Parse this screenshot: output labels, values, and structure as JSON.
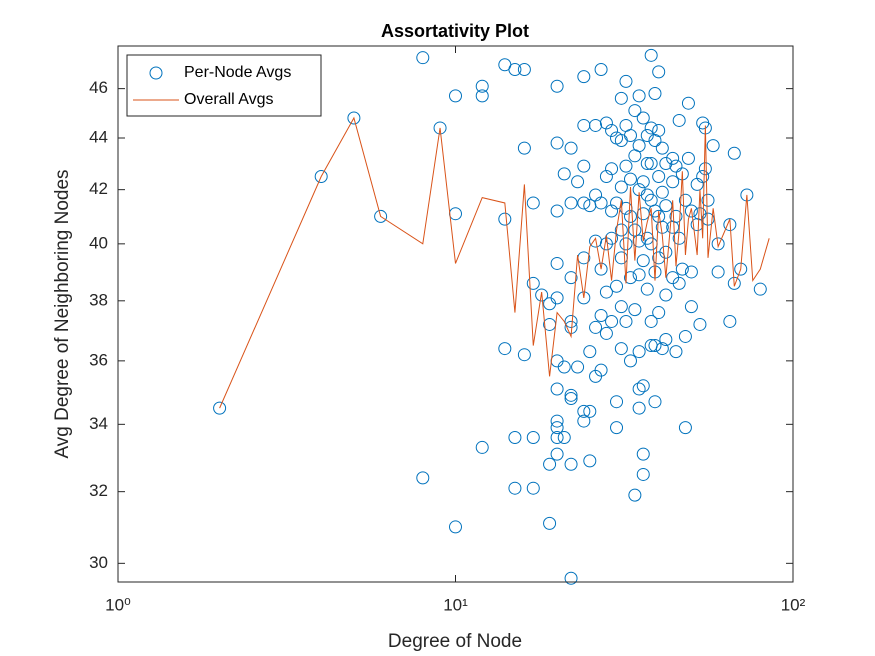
{
  "chart_data": {
    "type": "scatter",
    "title": "Assortativity Plot",
    "xlabel": "Degree of Node",
    "ylabel": "Avg Degree of Neighboring Nodes",
    "xscale": "log",
    "yscale": "log",
    "xlim": [
      1,
      100
    ],
    "ylim": [
      29.5,
      47.8
    ],
    "xticks": [
      {
        "value": 1,
        "label": "10⁰"
      },
      {
        "value": 10,
        "label": "10¹"
      },
      {
        "value": 100,
        "label": "10²"
      }
    ],
    "yticks": [
      30,
      32,
      34,
      36,
      38,
      40,
      42,
      44,
      46
    ],
    "legend": "top-left",
    "series": [
      {
        "name": "Per-Node Avgs",
        "type": "scatter",
        "color": "#0072bd",
        "x": [
          2,
          4,
          5,
          6,
          8,
          8,
          9,
          10,
          10,
          10,
          12,
          12,
          12,
          14,
          14,
          14,
          15,
          15,
          15,
          16,
          16,
          16,
          17,
          17,
          17,
          17,
          18,
          19,
          19,
          19,
          19,
          20,
          20,
          20,
          20,
          20,
          20,
          20,
          20,
          20,
          20,
          20,
          21,
          21,
          21,
          22,
          22,
          22,
          22,
          22,
          22,
          22,
          22,
          22,
          23,
          23,
          24,
          24,
          24,
          24,
          24,
          24,
          24,
          24,
          25,
          25,
          25,
          25,
          26,
          26,
          26,
          26,
          26,
          27,
          27,
          27,
          27,
          27,
          28,
          28,
          28,
          28,
          28,
          29,
          29,
          29,
          29,
          29,
          30,
          30,
          30,
          30,
          30,
          31,
          31,
          31,
          31,
          31,
          31,
          31,
          32,
          32,
          32,
          32,
          32,
          32,
          33,
          33,
          33,
          33,
          33,
          34,
          34,
          34,
          34,
          34,
          35,
          35,
          35,
          35,
          35,
          35,
          35,
          35,
          36,
          36,
          36,
          36,
          36,
          36,
          36,
          37,
          37,
          37,
          37,
          37,
          38,
          38,
          38,
          38,
          38,
          38,
          38,
          39,
          39,
          39,
          39,
          39,
          39,
          40,
          40,
          40,
          40,
          40,
          40,
          41,
          41,
          41,
          41,
          42,
          42,
          42,
          42,
          42,
          44,
          44,
          44,
          44,
          45,
          45,
          45,
          46,
          46,
          46,
          47,
          47,
          48,
          48,
          48,
          49,
          49,
          50,
          50,
          50,
          52,
          52,
          53,
          53,
          54,
          54,
          55,
          55,
          56,
          56,
          58,
          60,
          60,
          65,
          65,
          67,
          67,
          70,
          73,
          80
        ],
        "values": [
          34.5,
          42.5,
          44.8,
          41.0,
          47.3,
          32.4,
          44.4,
          45.7,
          41.1,
          31.0,
          46.1,
          45.7,
          33.3,
          47.0,
          40.9,
          36.4,
          46.8,
          33.6,
          32.1,
          46.8,
          43.6,
          36.2,
          41.5,
          38.6,
          33.6,
          32.1,
          38.2,
          37.9,
          37.2,
          32.8,
          31.1,
          46.1,
          43.8,
          41.2,
          39.3,
          38.1,
          36.0,
          35.1,
          34.1,
          33.9,
          33.6,
          33.1,
          42.6,
          35.8,
          33.6,
          43.6,
          41.5,
          38.8,
          37.3,
          37.1,
          34.9,
          34.8,
          32.8,
          29.6,
          42.3,
          35.8,
          46.5,
          44.5,
          42.9,
          41.5,
          39.5,
          38.1,
          34.4,
          34.1,
          41.4,
          36.3,
          34.4,
          32.9,
          44.5,
          41.8,
          40.1,
          37.1,
          35.5,
          46.8,
          41.5,
          39.1,
          37.5,
          35.7,
          44.6,
          42.5,
          40.0,
          38.3,
          36.9,
          44.3,
          42.8,
          41.2,
          40.2,
          37.3,
          44.0,
          41.5,
          38.5,
          34.7,
          33.9,
          45.6,
          43.9,
          42.1,
          40.5,
          39.5,
          37.8,
          36.4,
          46.3,
          44.5,
          42.9,
          41.3,
          40.0,
          37.3,
          44.1,
          42.4,
          41.0,
          38.8,
          36.0,
          45.1,
          43.3,
          40.5,
          37.7,
          31.9,
          45.7,
          43.7,
          42.0,
          40.1,
          38.9,
          36.3,
          35.1,
          34.5,
          44.8,
          42.3,
          41.1,
          39.4,
          35.2,
          33.1,
          32.5,
          44.1,
          43.0,
          41.8,
          40.2,
          38.4,
          47.4,
          44.4,
          43.0,
          41.6,
          40.0,
          37.3,
          36.5,
          45.8,
          43.9,
          41.2,
          39.0,
          36.5,
          34.7,
          46.7,
          44.3,
          42.5,
          41.0,
          39.5,
          37.6,
          43.6,
          41.9,
          40.6,
          36.4,
          43.0,
          41.4,
          39.7,
          38.2,
          36.7,
          43.2,
          42.3,
          40.6,
          38.8,
          42.9,
          41.0,
          36.3,
          44.7,
          40.2,
          38.6,
          42.6,
          39.1,
          41.6,
          36.8,
          33.9,
          45.4,
          43.2,
          41.2,
          39.0,
          37.8,
          42.2,
          40.7,
          41.1,
          37.2,
          44.6,
          42.5,
          44.4,
          42.8,
          41.6,
          40.9,
          43.7,
          40.0,
          39.0,
          40.7,
          37.3,
          43.4,
          38.6,
          39.1,
          41.8,
          38.4
        ]
      },
      {
        "name": "Overall Avgs",
        "type": "line",
        "color": "#d95319",
        "x": [
          2,
          4,
          5,
          6,
          8,
          9,
          10,
          12,
          14,
          15,
          16,
          17,
          18,
          19,
          20,
          21,
          22,
          23,
          24,
          25,
          26,
          27,
          28,
          29,
          30,
          31,
          32,
          33,
          34,
          35,
          36,
          37,
          38,
          39,
          40,
          41,
          42,
          44,
          45,
          46,
          47,
          48,
          49,
          50,
          52,
          53,
          54,
          55,
          56,
          58,
          60,
          65,
          67,
          70,
          73,
          76,
          80,
          85
        ],
        "values": [
          34.5,
          42.5,
          44.8,
          41.0,
          40.0,
          44.4,
          39.3,
          41.7,
          41.5,
          37.6,
          42.2,
          36.5,
          38.3,
          35.5,
          37.6,
          37.3,
          36.8,
          39.6,
          38.1,
          39.9,
          40.2,
          39.1,
          40.3,
          38.7,
          40.5,
          41.6,
          38.6,
          42.1,
          39.4,
          41.9,
          40.1,
          40.8,
          41.3,
          38.7,
          41.2,
          40.3,
          38.8,
          41.6,
          39.2,
          40.5,
          42.7,
          39.6,
          40.9,
          41.3,
          39.6,
          42.0,
          40.2,
          44.5,
          39.5,
          41.3,
          39.9,
          40.9,
          38.5,
          39.1,
          41.8,
          38.7,
          39.1,
          40.2
        ]
      }
    ]
  }
}
